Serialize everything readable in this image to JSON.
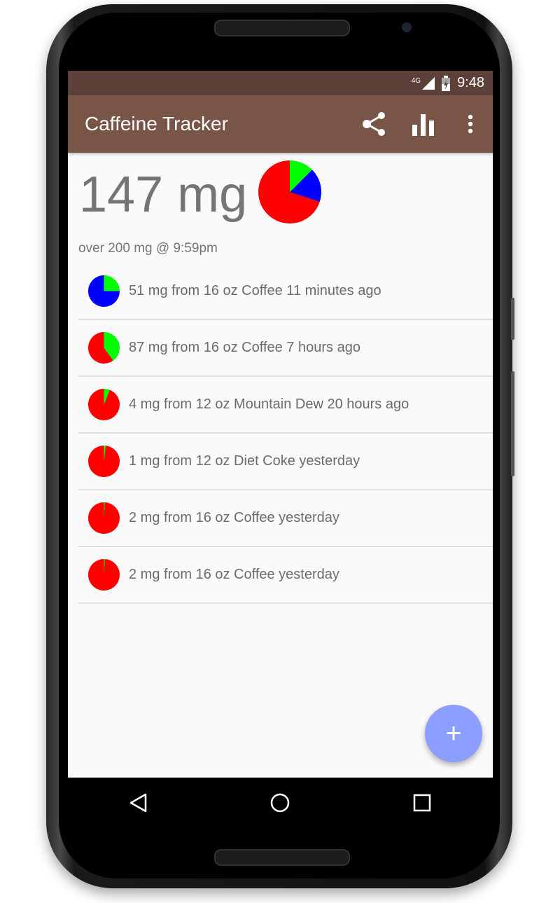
{
  "status_bar": {
    "network": "4G",
    "time": "9:48"
  },
  "app_bar": {
    "title": "Caffeine Tracker",
    "actions": [
      {
        "icon": "share-icon"
      },
      {
        "icon": "bar-chart-icon"
      },
      {
        "icon": "more-vert-icon"
      }
    ]
  },
  "summary": {
    "total": "147 mg",
    "projection": "over 200 mg @ 9:59pm",
    "pie": {
      "green": 0.125,
      "blue": 0.175
    }
  },
  "colors": {
    "primary": "#795548",
    "primary_dark": "#5d4037",
    "fab": "#8c9eff",
    "pie_red": "#ff0000",
    "pie_green": "#00ff00",
    "pie_blue": "#0000ff"
  },
  "entries": [
    {
      "text": "51 mg from 16 oz Coffee 11 minutes ago",
      "pie": {
        "green": 0.25,
        "blue": 0.75
      }
    },
    {
      "text": "87 mg from 16 oz Coffee 7 hours ago",
      "pie": {
        "green": 0.4,
        "blue": 0
      }
    },
    {
      "text": "4 mg from 12 oz Mountain Dew 20 hours ago",
      "pie": {
        "green": 0.06,
        "blue": 0
      }
    },
    {
      "text": "1 mg from 12 oz Diet Coke yesterday",
      "pie": {
        "green": 0.02,
        "blue": 0
      }
    },
    {
      "text": "2 mg from 16 oz Coffee yesterday",
      "pie": {
        "green": 0.01,
        "blue": 0
      }
    },
    {
      "text": "2 mg from 16 oz Coffee yesterday",
      "pie": {
        "green": 0.01,
        "blue": 0
      }
    }
  ],
  "fab": {
    "label": "+"
  },
  "nav": [
    {
      "icon": "back-icon"
    },
    {
      "icon": "home-icon"
    },
    {
      "icon": "recents-icon"
    }
  ]
}
